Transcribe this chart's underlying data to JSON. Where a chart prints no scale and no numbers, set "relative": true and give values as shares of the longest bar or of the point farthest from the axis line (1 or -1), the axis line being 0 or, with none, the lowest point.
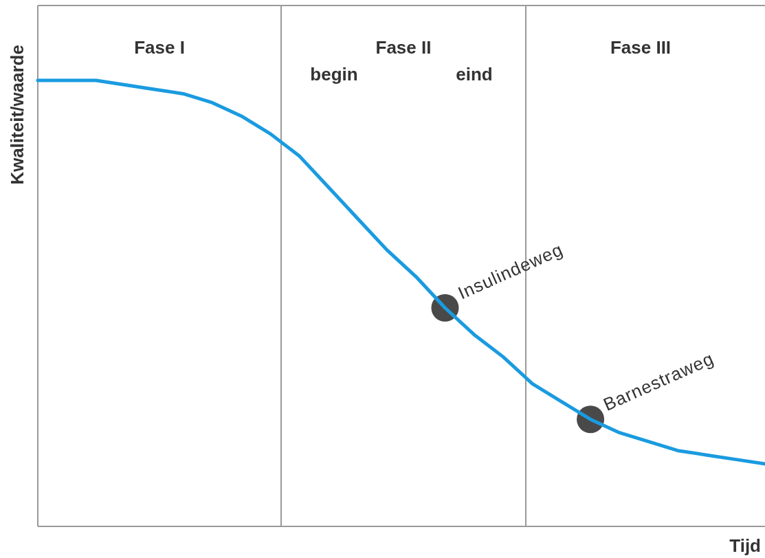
{
  "chart_data": {
    "type": "line",
    "relative": true,
    "ylabel": "Kwaliteit/waarde",
    "xlabel": "Tijd",
    "categories": [
      null,
      null,
      null,
      null,
      null,
      null,
      null,
      null,
      null,
      null,
      null,
      null,
      null,
      null,
      null,
      null,
      null,
      null,
      null,
      null,
      null,
      null,
      null,
      null,
      null,
      null
    ],
    "series": [
      {
        "color": "#1a9be0",
        "values": [
          1.0,
          1.0,
          1.0,
          0.99,
          0.98,
          0.97,
          0.95,
          0.92,
          0.88,
          0.83,
          0.76,
          0.69,
          0.62,
          0.56,
          0.49,
          0.43,
          0.38,
          0.32,
          0.28,
          0.24,
          0.21,
          0.19,
          0.17,
          0.16,
          0.15,
          0.14
        ]
      }
    ],
    "annotations": [
      "Fase I",
      "Fase II",
      "Fase III",
      "begin",
      "eind",
      "Insulindeweg",
      "Barnestraweg"
    ]
  }
}
